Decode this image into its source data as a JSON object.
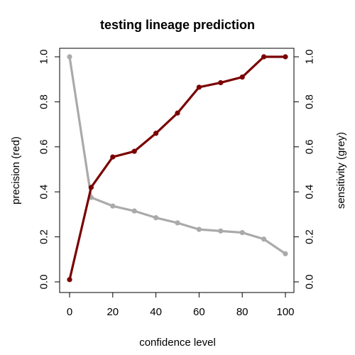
{
  "chart_data": {
    "type": "line",
    "title": "testing lineage prediction",
    "xlabel": "confidence level",
    "ylabel_left": "precision (red)",
    "ylabel_right": "sensitivity (grey)",
    "xlim": [
      0,
      100
    ],
    "ylim": [
      0,
      1
    ],
    "x_ticks": [
      "0",
      "20",
      "40",
      "60",
      "80",
      "100"
    ],
    "y_ticks": [
      "0.0",
      "0.2",
      "0.4",
      "0.6",
      "0.8",
      "1.0"
    ],
    "x": [
      0,
      10,
      20,
      30,
      40,
      50,
      60,
      70,
      80,
      90,
      100
    ],
    "grid": false,
    "series": [
      {
        "key": "precision",
        "axis": "left",
        "color": "#7a0000",
        "values": [
          0.01,
          0.42,
          0.555,
          0.58,
          0.66,
          0.75,
          0.865,
          0.885,
          0.91,
          1.0,
          1.0
        ]
      },
      {
        "key": "sensitivity",
        "axis": "right",
        "color": "#aaaaaa",
        "values": [
          1.0,
          0.375,
          0.337,
          0.315,
          0.285,
          0.262,
          0.233,
          0.226,
          0.219,
          0.19,
          0.125
        ]
      }
    ]
  }
}
